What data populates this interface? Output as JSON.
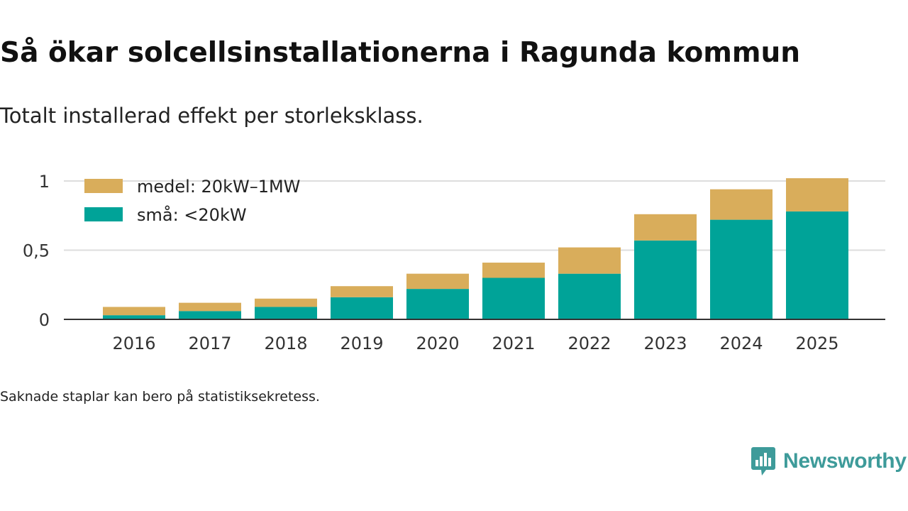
{
  "title": "Så ökar solcellsinstallationerna i Ragunda kommun",
  "subtitle": "Totalt installerad effekt per storleksklass.",
  "footnote": "Saknade staplar kan bero på statistiksekretess.",
  "logo": {
    "text": "Newsworthy",
    "icon": "newsworthy-chart-bubble-icon"
  },
  "colors": {
    "small": "#00a398",
    "medium": "#d9ad5b",
    "grid": "#dddddd",
    "axis": "#333333"
  },
  "chart_data": {
    "type": "bar",
    "stacked": true,
    "title": "Så ökar solcellsinstallationerna i Ragunda kommun",
    "subtitle": "Totalt installerad effekt per storleksklass.",
    "xlabel": "",
    "ylabel": "",
    "categories": [
      "2016",
      "2017",
      "2018",
      "2019",
      "2020",
      "2021",
      "2022",
      "2023",
      "2024",
      "2025"
    ],
    "series": [
      {
        "name": "små: <20kW",
        "color": "#00a398",
        "values": [
          0.03,
          0.06,
          0.09,
          0.16,
          0.22,
          0.3,
          0.33,
          0.57,
          0.72,
          0.78
        ]
      },
      {
        "name": "medel: 20kW–1MW",
        "color": "#d9ad5b",
        "values": [
          0.06,
          0.06,
          0.06,
          0.08,
          0.11,
          0.11,
          0.19,
          0.19,
          0.22,
          0.24
        ]
      }
    ],
    "ylim": [
      0,
      1.02
    ],
    "yticks": [
      0,
      0.5,
      1
    ],
    "ytick_labels": [
      "0",
      "0,5",
      "1"
    ],
    "legend": [
      {
        "label": "medel: 20kW–1MW",
        "series": 1
      },
      {
        "label": "små: <20kW",
        "series": 0
      }
    ],
    "legend_position": "top-left",
    "grid": true
  }
}
